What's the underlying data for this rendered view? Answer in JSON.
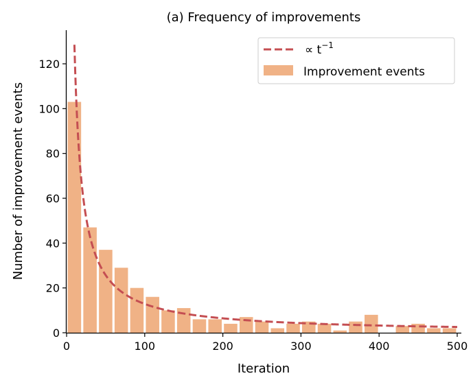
{
  "chart_data": {
    "type": "bar",
    "title": "(a) Frequency of improvements",
    "xlabel": "Iteration",
    "ylabel": "Number of improvement events",
    "xlim": [
      0,
      500
    ],
    "ylim": [
      0,
      135
    ],
    "xticks": [
      0,
      100,
      200,
      300,
      400,
      500
    ],
    "yticks": [
      0,
      20,
      40,
      60,
      80,
      100,
      120
    ],
    "grid": false,
    "legend_position": "top-right",
    "bin_width": 19.3,
    "series": [
      {
        "name": "Improvement events",
        "kind": "histogram",
        "color": "#f0b286",
        "bins": [
          {
            "x": 10,
            "value": 103
          },
          {
            "x": 30,
            "value": 47
          },
          {
            "x": 50,
            "value": 37
          },
          {
            "x": 70,
            "value": 29
          },
          {
            "x": 90,
            "value": 20
          },
          {
            "x": 110,
            "value": 16
          },
          {
            "x": 130,
            "value": 10
          },
          {
            "x": 150,
            "value": 11
          },
          {
            "x": 170,
            "value": 6
          },
          {
            "x": 190,
            "value": 6
          },
          {
            "x": 210,
            "value": 4
          },
          {
            "x": 230,
            "value": 7
          },
          {
            "x": 250,
            "value": 5
          },
          {
            "x": 270,
            "value": 2
          },
          {
            "x": 290,
            "value": 4
          },
          {
            "x": 310,
            "value": 5
          },
          {
            "x": 330,
            "value": 4
          },
          {
            "x": 350,
            "value": 1
          },
          {
            "x": 370,
            "value": 5
          },
          {
            "x": 390,
            "value": 8
          },
          {
            "x": 410,
            "value": 0
          },
          {
            "x": 430,
            "value": 3
          },
          {
            "x": 450,
            "value": 4
          },
          {
            "x": 470,
            "value": 2
          },
          {
            "x": 490,
            "value": 2
          }
        ]
      },
      {
        "name": "∝ t",
        "name_superscript": "−1",
        "kind": "line",
        "style": "dashed",
        "color": "#c44e52",
        "formula": "C / t",
        "coefficient": 1285,
        "x_range": [
          10,
          500
        ]
      }
    ]
  }
}
